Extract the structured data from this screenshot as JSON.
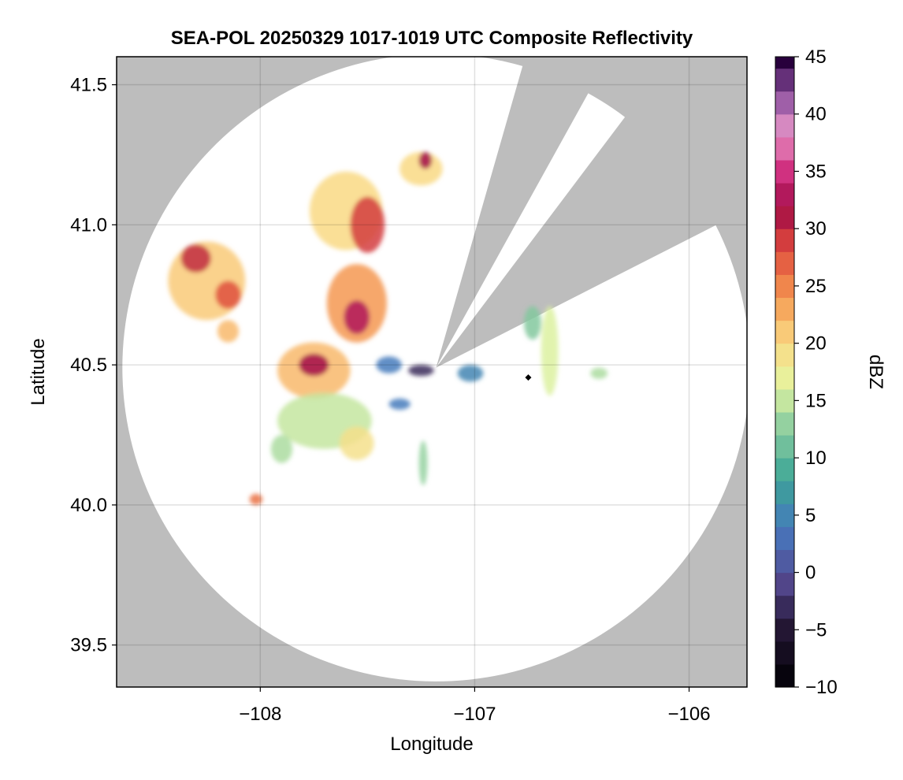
{
  "chart_data": {
    "type": "heatmap",
    "title": "SEA-POL 20250329 1017-1019 UTC Composite Reflectivity",
    "xlabel": "Longitude",
    "ylabel": "Latitude",
    "xlim": [
      -108.67,
      -105.73
    ],
    "ylim": [
      39.35,
      41.6
    ],
    "x_ticks": [
      -108,
      -107,
      -106
    ],
    "x_tick_labels": [
      "−108",
      "−107",
      "−106"
    ],
    "y_ticks": [
      39.5,
      40.0,
      40.5,
      41.0,
      41.5
    ],
    "y_tick_labels": [
      "39.5",
      "40.0",
      "40.5",
      "41.0",
      "41.5"
    ],
    "grid": true,
    "background_color": "#bdbdbd",
    "coverage_color": "#ffffff",
    "radar": {
      "center": [
        -107.18,
        40.49
      ],
      "range_lat_deg": 1.12,
      "blocked_sectors": [
        {
          "label": "north sector",
          "azimuth_deg": [
            16,
            29
          ]
        },
        {
          "label": "northeast sector",
          "azimuth_deg": [
            37,
            63
          ]
        }
      ]
    },
    "site_marker": {
      "lon": -106.75,
      "lat": 40.455,
      "color": "#000000"
    },
    "colorbar": {
      "label": "dBZ",
      "min": -10,
      "max": 45,
      "step": 2,
      "ticks": [
        -10,
        -5,
        0,
        5,
        10,
        15,
        20,
        25,
        30,
        35,
        40,
        45
      ],
      "tick_labels": [
        "−10",
        "−5",
        "0",
        "5",
        "10",
        "15",
        "20",
        "25",
        "30",
        "35",
        "40",
        "45"
      ],
      "colormap": "spectral_r"
    },
    "echo_cells": [
      {
        "lon": -108.25,
        "lat": 40.8,
        "rx": 0.18,
        "ry": 0.14,
        "dbz": 21
      },
      {
        "lon": -108.3,
        "lat": 40.88,
        "rx": 0.07,
        "ry": 0.05,
        "dbz": 30
      },
      {
        "lon": -108.15,
        "lat": 40.75,
        "rx": 0.06,
        "ry": 0.05,
        "dbz": 28
      },
      {
        "lon": -107.6,
        "lat": 41.05,
        "rx": 0.17,
        "ry": 0.14,
        "dbz": 20
      },
      {
        "lon": -107.5,
        "lat": 41.0,
        "rx": 0.08,
        "ry": 0.1,
        "dbz": 29
      },
      {
        "lon": -107.55,
        "lat": 40.72,
        "rx": 0.14,
        "ry": 0.14,
        "dbz": 24
      },
      {
        "lon": -107.55,
        "lat": 40.67,
        "rx": 0.06,
        "ry": 0.06,
        "dbz": 33
      },
      {
        "lon": -107.75,
        "lat": 40.48,
        "rx": 0.17,
        "ry": 0.1,
        "dbz": 22
      },
      {
        "lon": -107.75,
        "lat": 40.5,
        "rx": 0.07,
        "ry": 0.04,
        "dbz": 32
      },
      {
        "lon": -107.7,
        "lat": 40.3,
        "rx": 0.22,
        "ry": 0.1,
        "dbz": 15
      },
      {
        "lon": -107.55,
        "lat": 40.22,
        "rx": 0.08,
        "ry": 0.06,
        "dbz": 19
      },
      {
        "lon": -107.25,
        "lat": 41.2,
        "rx": 0.1,
        "ry": 0.06,
        "dbz": 20
      },
      {
        "lon": -107.23,
        "lat": 41.23,
        "rx": 0.03,
        "ry": 0.03,
        "dbz": 32
      },
      {
        "lon": -106.65,
        "lat": 40.55,
        "rx": 0.04,
        "ry": 0.16,
        "dbz": 16
      },
      {
        "lon": -106.73,
        "lat": 40.65,
        "rx": 0.04,
        "ry": 0.06,
        "dbz": 12
      },
      {
        "lon": -107.25,
        "lat": 40.48,
        "rx": 0.06,
        "ry": 0.02,
        "dbz": -3
      },
      {
        "lon": -107.4,
        "lat": 40.5,
        "rx": 0.06,
        "ry": 0.03,
        "dbz": 4
      },
      {
        "lon": -107.35,
        "lat": 40.36,
        "rx": 0.05,
        "ry": 0.02,
        "dbz": 4
      },
      {
        "lon": -107.02,
        "lat": 40.47,
        "rx": 0.06,
        "ry": 0.03,
        "dbz": 5
      },
      {
        "lon": -107.24,
        "lat": 40.15,
        "rx": 0.02,
        "ry": 0.08,
        "dbz": 13
      },
      {
        "lon": -108.02,
        "lat": 40.02,
        "rx": 0.03,
        "ry": 0.02,
        "dbz": 26
      },
      {
        "lon": -106.42,
        "lat": 40.47,
        "rx": 0.04,
        "ry": 0.02,
        "dbz": 14
      },
      {
        "lon": -107.9,
        "lat": 40.2,
        "rx": 0.05,
        "ry": 0.05,
        "dbz": 14
      },
      {
        "lon": -108.15,
        "lat": 40.62,
        "rx": 0.05,
        "ry": 0.04,
        "dbz": 22
      }
    ]
  }
}
